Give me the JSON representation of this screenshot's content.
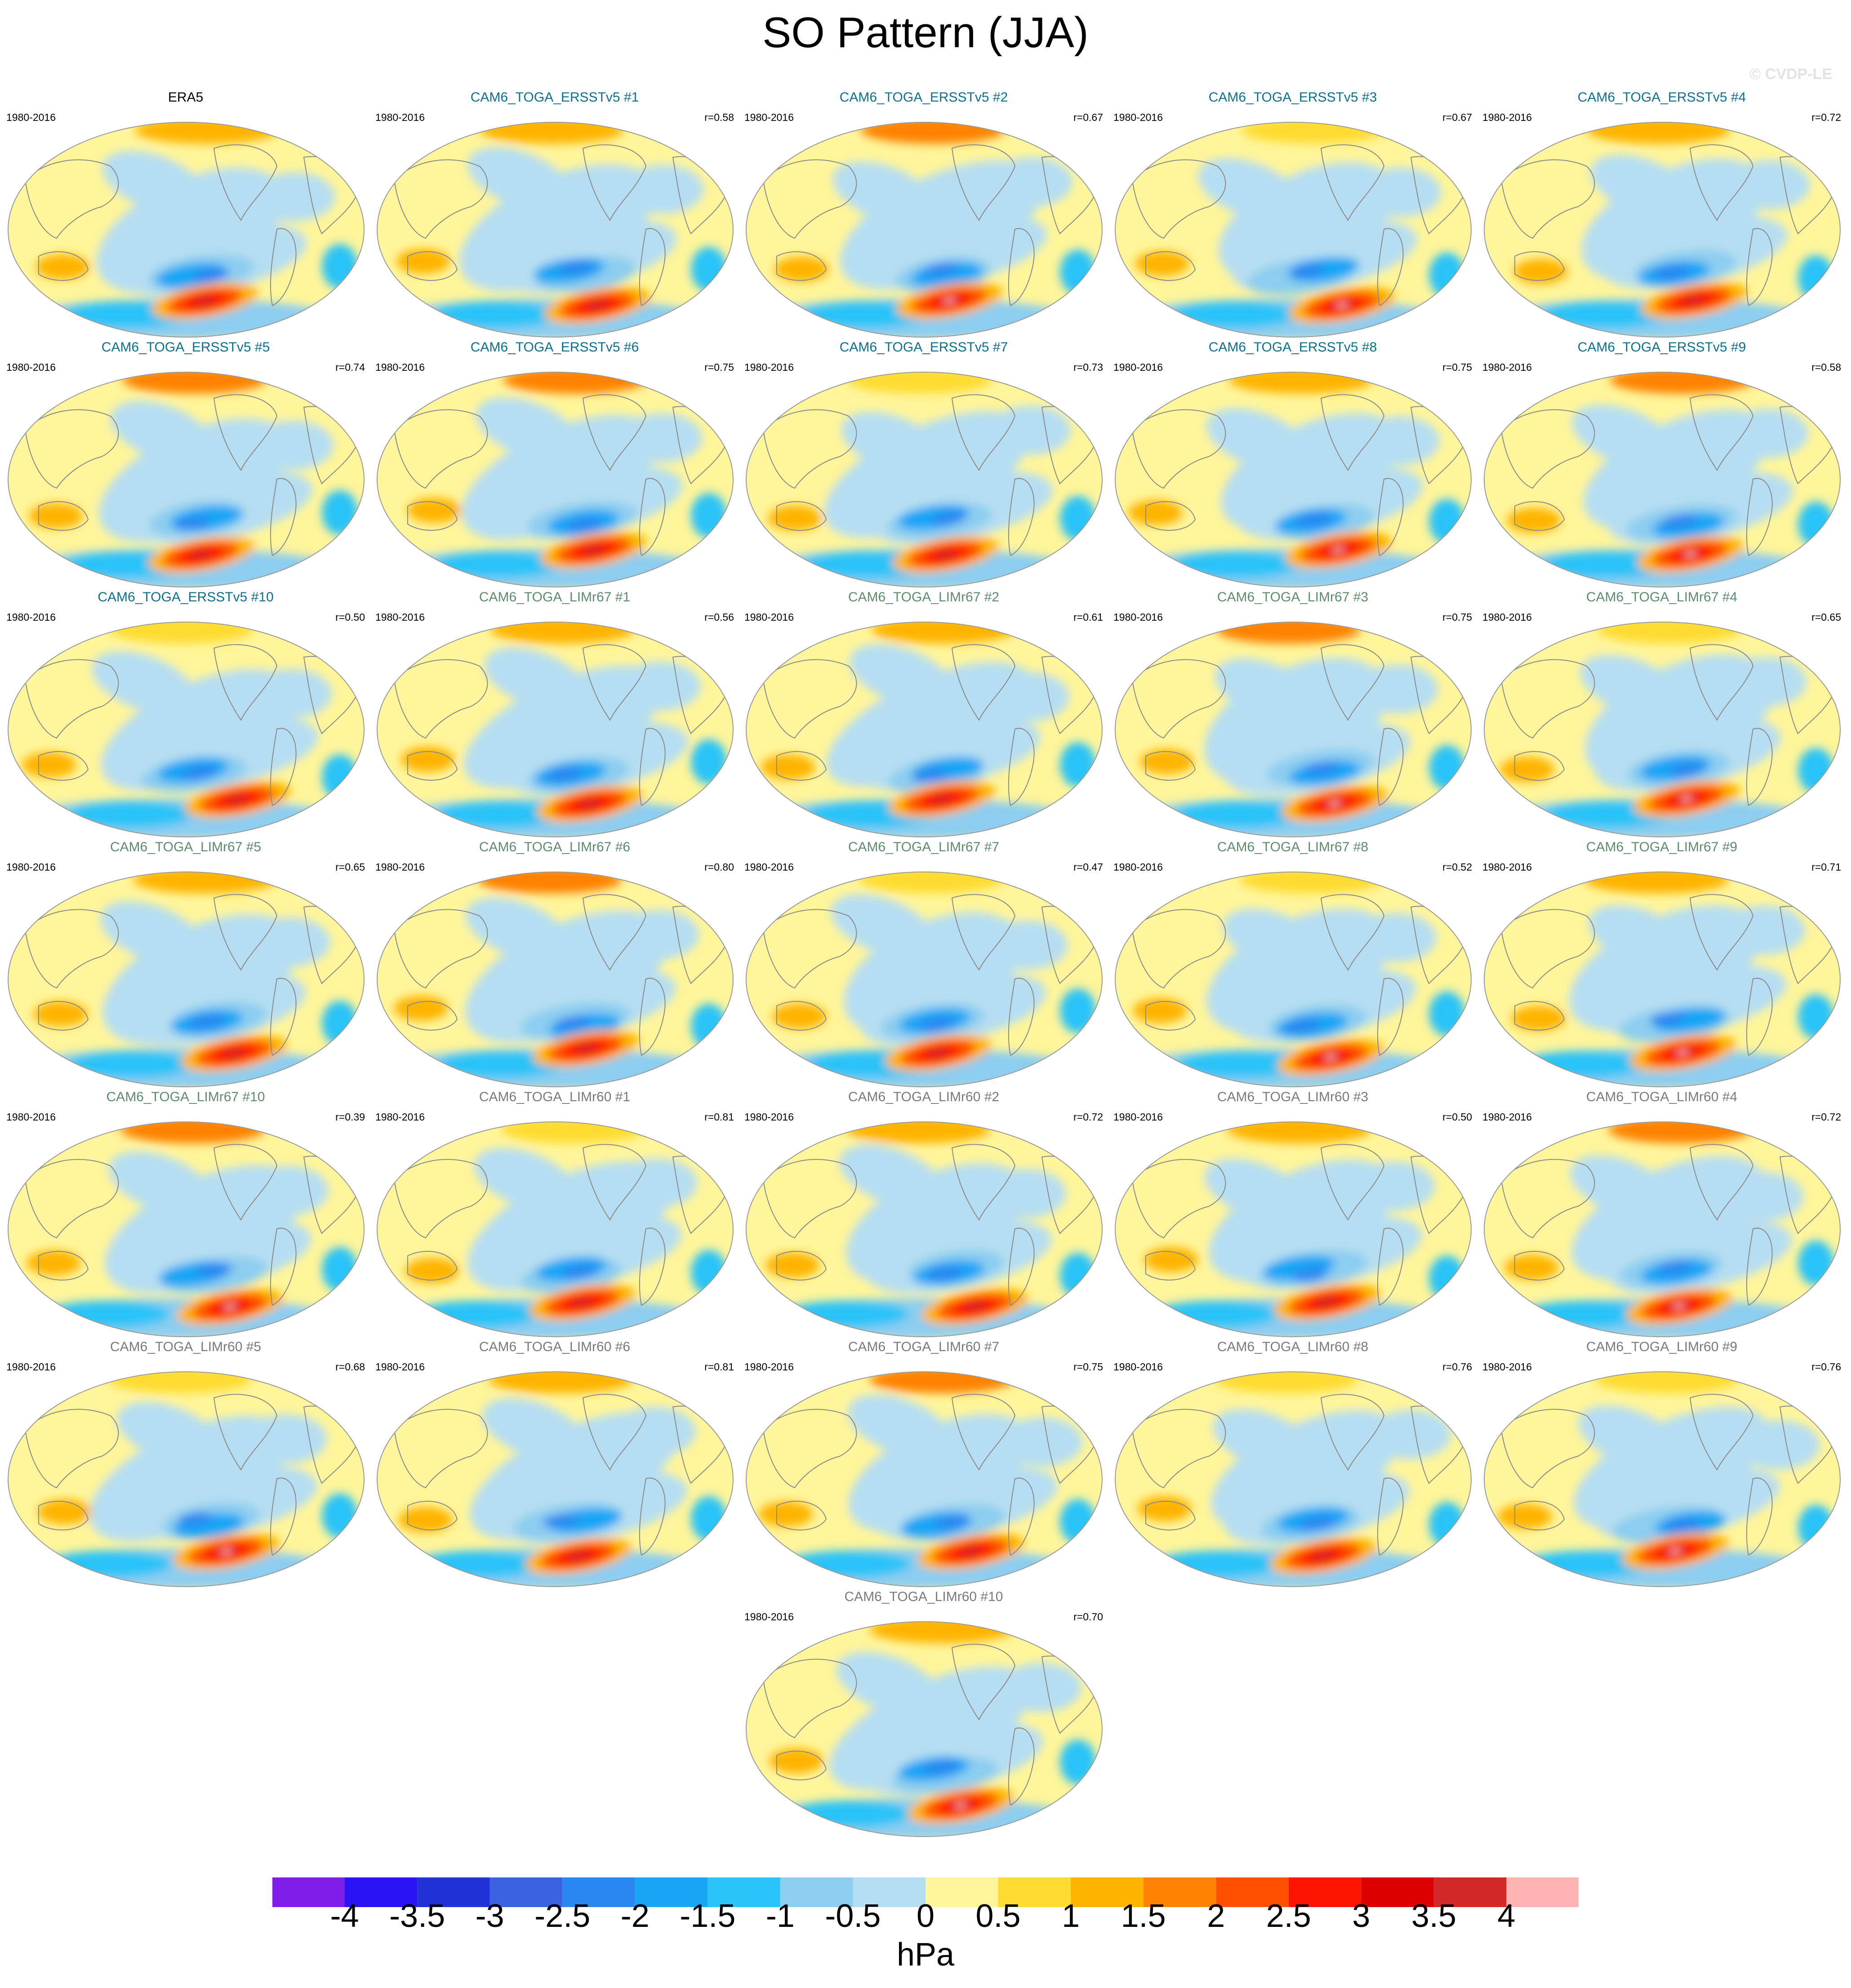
{
  "title": "SO Pattern (JJA)",
  "credit": "© CVDP-LE",
  "colors": {
    "title_obs": "#000000",
    "title_ersst": "#0e6f8a",
    "title_limr67": "#5f8a6e",
    "title_limr60": "#7a7a7a",
    "land_line": "#8a8a8a",
    "map_border": "#9a9a9a"
  },
  "panels": [
    {
      "label": "ERA5",
      "years": "1980-2016",
      "r": "",
      "group": "obs"
    },
    {
      "label": "CAM6_TOGA_ERSSTv5 #1",
      "years": "1980-2016",
      "r": "r=0.58",
      "group": "ersst"
    },
    {
      "label": "CAM6_TOGA_ERSSTv5 #2",
      "years": "1980-2016",
      "r": "r=0.67",
      "group": "ersst"
    },
    {
      "label": "CAM6_TOGA_ERSSTv5 #3",
      "years": "1980-2016",
      "r": "r=0.67",
      "group": "ersst"
    },
    {
      "label": "CAM6_TOGA_ERSSTv5 #4",
      "years": "1980-2016",
      "r": "r=0.72",
      "group": "ersst"
    },
    {
      "label": "CAM6_TOGA_ERSSTv5 #5",
      "years": "1980-2016",
      "r": "r=0.74",
      "group": "ersst"
    },
    {
      "label": "CAM6_TOGA_ERSSTv5 #6",
      "years": "1980-2016",
      "r": "r=0.75",
      "group": "ersst"
    },
    {
      "label": "CAM6_TOGA_ERSSTv5 #7",
      "years": "1980-2016",
      "r": "r=0.73",
      "group": "ersst"
    },
    {
      "label": "CAM6_TOGA_ERSSTv5 #8",
      "years": "1980-2016",
      "r": "r=0.75",
      "group": "ersst"
    },
    {
      "label": "CAM6_TOGA_ERSSTv5 #9",
      "years": "1980-2016",
      "r": "r=0.58",
      "group": "ersst"
    },
    {
      "label": "CAM6_TOGA_ERSSTv5 #10",
      "years": "1980-2016",
      "r": "r=0.50",
      "group": "ersst"
    },
    {
      "label": "CAM6_TOGA_LIMr67 #1",
      "years": "1980-2016",
      "r": "r=0.56",
      "group": "limr67"
    },
    {
      "label": "CAM6_TOGA_LIMr67 #2",
      "years": "1980-2016",
      "r": "r=0.61",
      "group": "limr67"
    },
    {
      "label": "CAM6_TOGA_LIMr67 #3",
      "years": "1980-2016",
      "r": "r=0.75",
      "group": "limr67"
    },
    {
      "label": "CAM6_TOGA_LIMr67 #4",
      "years": "1980-2016",
      "r": "r=0.65",
      "group": "limr67"
    },
    {
      "label": "CAM6_TOGA_LIMr67 #5",
      "years": "1980-2016",
      "r": "r=0.65",
      "group": "limr67"
    },
    {
      "label": "CAM6_TOGA_LIMr67 #6",
      "years": "1980-2016",
      "r": "r=0.80",
      "group": "limr67"
    },
    {
      "label": "CAM6_TOGA_LIMr67 #7",
      "years": "1980-2016",
      "r": "r=0.47",
      "group": "limr67"
    },
    {
      "label": "CAM6_TOGA_LIMr67 #8",
      "years": "1980-2016",
      "r": "r=0.52",
      "group": "limr67"
    },
    {
      "label": "CAM6_TOGA_LIMr67 #9",
      "years": "1980-2016",
      "r": "r=0.71",
      "group": "limr67"
    },
    {
      "label": "CAM6_TOGA_LIMr67 #10",
      "years": "1980-2016",
      "r": "r=0.39",
      "group": "limr67"
    },
    {
      "label": "CAM6_TOGA_LIMr60 #1",
      "years": "1980-2016",
      "r": "r=0.81",
      "group": "limr60"
    },
    {
      "label": "CAM6_TOGA_LIMr60 #2",
      "years": "1980-2016",
      "r": "r=0.72",
      "group": "limr60"
    },
    {
      "label": "CAM6_TOGA_LIMr60 #3",
      "years": "1980-2016",
      "r": "r=0.50",
      "group": "limr60"
    },
    {
      "label": "CAM6_TOGA_LIMr60 #4",
      "years": "1980-2016",
      "r": "r=0.72",
      "group": "limr60"
    },
    {
      "label": "CAM6_TOGA_LIMr60 #5",
      "years": "1980-2016",
      "r": "r=0.68",
      "group": "limr60"
    },
    {
      "label": "CAM6_TOGA_LIMr60 #6",
      "years": "1980-2016",
      "r": "r=0.81",
      "group": "limr60"
    },
    {
      "label": "CAM6_TOGA_LIMr60 #7",
      "years": "1980-2016",
      "r": "r=0.75",
      "group": "limr60"
    },
    {
      "label": "CAM6_TOGA_LIMr60 #8",
      "years": "1980-2016",
      "r": "r=0.76",
      "group": "limr60"
    },
    {
      "label": "CAM6_TOGA_LIMr60 #9",
      "years": "1980-2016",
      "r": "r=0.76",
      "group": "limr60"
    },
    {
      "label": "CAM6_TOGA_LIMr60 #10",
      "years": "1980-2016",
      "r": "r=0.70",
      "group": "limr60"
    }
  ],
  "colorbar": {
    "units": "hPa",
    "ticks": [
      "-4",
      "-3.5",
      "-3",
      "-2.5",
      "-2",
      "-1.5",
      "-1",
      "-0.5",
      "0",
      "0.5",
      "1",
      "1.5",
      "2",
      "2.5",
      "3",
      "3.5",
      "4"
    ],
    "colors": [
      "#7d1eea",
      "#2a14f5",
      "#1e32d8",
      "#3b62e0",
      "#2a86f0",
      "#19a5f5",
      "#2ac3f7",
      "#8ccdf0",
      "#b6def2",
      "#fff59a",
      "#ffdc32",
      "#ffb400",
      "#ff8200",
      "#ff5000",
      "#ff1400",
      "#dc0000",
      "#d22828",
      "#ffb4b4"
    ]
  }
}
